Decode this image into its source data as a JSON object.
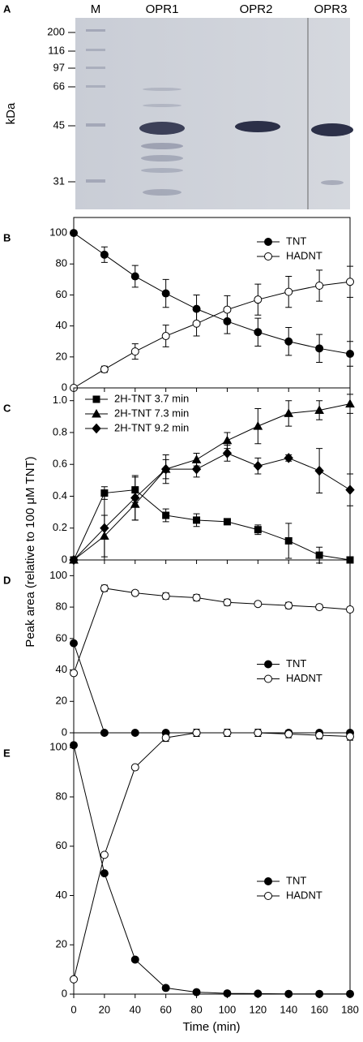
{
  "gel": {
    "panel": "A",
    "lanes": [
      "M",
      "OPR1",
      "OPR2",
      "OPR3"
    ],
    "ylabel": "kDa",
    "markers": [
      200,
      116,
      97,
      66,
      45,
      31
    ]
  },
  "ylabel": "Peak area (relative to 100 μM TNT)",
  "xlabel": "Time (min)",
  "chart_data": [
    {
      "type": "line",
      "panel": "B",
      "legend": "upper right",
      "xtick_labels": false,
      "x": [
        0,
        20,
        40,
        60,
        80,
        100,
        120,
        140,
        160,
        180
      ],
      "xlim": [
        0,
        180
      ],
      "xticks": [
        0,
        20,
        40,
        60,
        80,
        100,
        120,
        140,
        160,
        180
      ],
      "ylim": [
        0,
        110
      ],
      "yticks": [
        0,
        20,
        40,
        60,
        80,
        100
      ],
      "series": [
        {
          "name": "TNT",
          "color": "#000000",
          "marker": "circle",
          "marker_fill": "#000000",
          "values": [
            100,
            86,
            72,
            61,
            51,
            43,
            36,
            30,
            25.5,
            22
          ],
          "errors": [
            0,
            5,
            7,
            9,
            9,
            8,
            9,
            9,
            9,
            8
          ]
        },
        {
          "name": "HADNT",
          "color": "#000000",
          "marker": "circle",
          "marker_fill": "#ffffff",
          "values": [
            0,
            12,
            23.5,
            33.5,
            41.5,
            50.5,
            57,
            62,
            66,
            68.5
          ],
          "errors": [
            0,
            2,
            5,
            7,
            8,
            9,
            10,
            10,
            10,
            10
          ]
        }
      ]
    },
    {
      "type": "line",
      "panel": "C",
      "legend": "upper left",
      "xtick_labels": false,
      "x": [
        0,
        20,
        40,
        60,
        80,
        100,
        120,
        140,
        160,
        180
      ],
      "xlim": [
        0,
        180
      ],
      "xticks": [
        0,
        20,
        40,
        60,
        80,
        100,
        120,
        140,
        160,
        180
      ],
      "ylim": [
        0,
        1.08
      ],
      "yticks": [
        0,
        0.2,
        0.4,
        0.6,
        0.8,
        {
          "value": 1,
          "label": "1.0"
        }
      ],
      "series": [
        {
          "name": "2H-TNT 3.7 min",
          "color": "#000000",
          "marker": "square",
          "marker_fill": "#000000",
          "values": [
            0,
            0.42,
            0.44,
            0.28,
            0.25,
            0.24,
            0.19,
            0.12,
            0.03,
            0
          ],
          "errors": [
            0,
            0.04,
            0.08,
            0.04,
            0.04,
            0.01,
            0.03,
            0.11,
            0.05,
            0
          ]
        },
        {
          "name": "2H-TNT 7.3 min",
          "color": "#000000",
          "marker": "triangle",
          "marker_fill": "#000000",
          "values": [
            0,
            0.15,
            0.35,
            0.57,
            0.63,
            0.75,
            0.84,
            0.92,
            0.94,
            0.98
          ],
          "errors": [
            0,
            0.13,
            0.1,
            0.06,
            0.04,
            0.05,
            0.11,
            0.08,
            0.06,
            0.06
          ]
        },
        {
          "name": "2H-TNT 9.2 min",
          "color": "#000000",
          "marker": "diamond",
          "marker_fill": "#000000",
          "values": [
            0,
            0.2,
            0.39,
            0.57,
            0.57,
            0.67,
            0.59,
            0.64,
            0.56,
            0.44
          ],
          "errors": [
            0,
            0.2,
            0.14,
            0.09,
            0.05,
            0.05,
            0.05,
            0.02,
            0.14,
            0.1
          ]
        }
      ]
    },
    {
      "type": "line",
      "panel": "D",
      "legend": "center right",
      "xtick_labels": false,
      "x": [
        0,
        20,
        40,
        60,
        80,
        100,
        120,
        140,
        160,
        180
      ],
      "xlim": [
        0,
        180
      ],
      "xticks": [
        0,
        20,
        40,
        60,
        80,
        100,
        120,
        140,
        160,
        180
      ],
      "ylim": [
        0,
        110
      ],
      "yticks": [
        0,
        20,
        40,
        60,
        80,
        100
      ],
      "series": [
        {
          "name": "TNT",
          "color": "#000000",
          "marker": "circle",
          "marker_fill": "#000000",
          "values": [
            57,
            0,
            0,
            0,
            0,
            0,
            0,
            0,
            0,
            0
          ],
          "errors": [
            0,
            0,
            0,
            0,
            0,
            0,
            0,
            0,
            0,
            0
          ]
        },
        {
          "name": "HADNT",
          "color": "#000000",
          "marker": "circle",
          "marker_fill": "#ffffff",
          "values": [
            38,
            92,
            89,
            87,
            86,
            83,
            82,
            81,
            80,
            78.5
          ],
          "errors": [
            0,
            2,
            1.5,
            2,
            2,
            2,
            1,
            2,
            1.5,
            1.5
          ]
        }
      ]
    },
    {
      "type": "line",
      "panel": "E",
      "legend": "center right",
      "xtick_labels": true,
      "x": [
        0,
        20,
        40,
        60,
        80,
        100,
        120,
        140,
        160,
        180
      ],
      "xlim": [
        0,
        180
      ],
      "xticks": [
        0,
        20,
        40,
        60,
        80,
        100,
        120,
        140,
        160,
        180
      ],
      "ylim": [
        0,
        106
      ],
      "yticks": [
        0,
        20,
        40,
        60,
        80,
        100
      ],
      "series": [
        {
          "name": "TNT",
          "color": "#000000",
          "marker": "circle",
          "marker_fill": "#000000",
          "values": [
            101,
            49,
            14,
            2.5,
            0.8,
            0.3,
            0.2,
            0.1,
            0.1,
            0.1
          ],
          "errors": [
            0,
            0,
            0,
            0,
            0,
            0,
            0,
            0,
            0,
            0
          ]
        },
        {
          "name": "HADNT",
          "color": "#000000",
          "marker": "circle",
          "marker_fill": "#ffffff",
          "values": [
            6,
            56.5,
            92,
            104,
            106,
            106,
            106,
            105.5,
            105,
            104.5
          ],
          "errors": [
            0,
            0,
            0,
            1.5,
            1.5,
            1.5,
            1.5,
            1.5,
            1.5,
            1.5
          ]
        }
      ]
    }
  ]
}
